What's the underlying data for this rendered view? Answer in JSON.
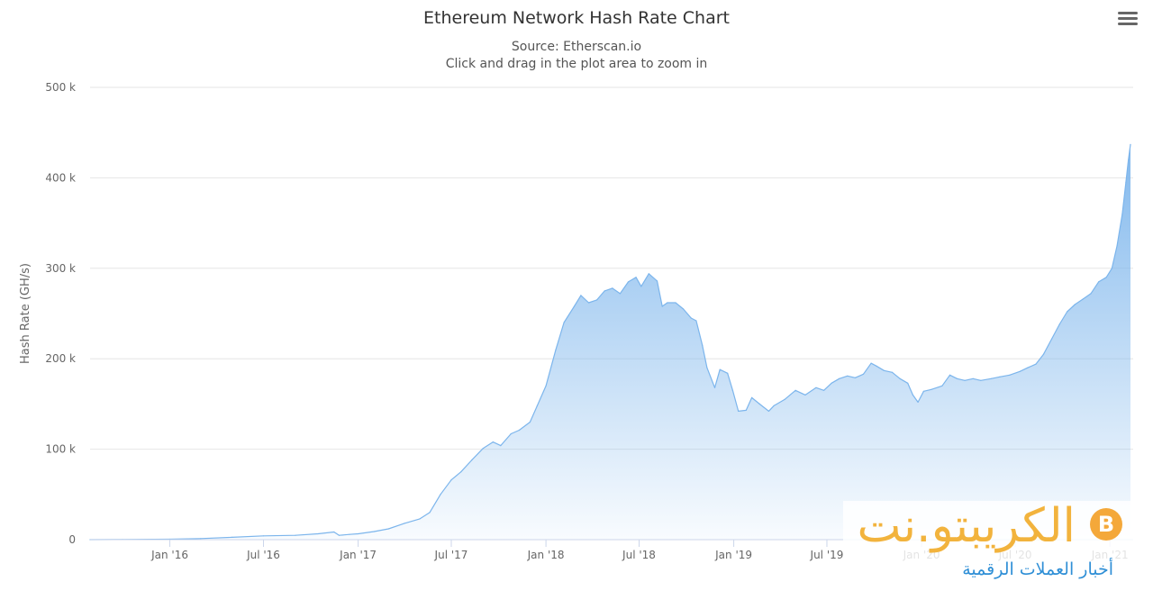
{
  "chart_data": {
    "type": "area",
    "title": "Ethereum Network Hash Rate Chart",
    "subtitle_source": "Source: Etherscan.io",
    "subtitle_hint": "Click and drag in the plot area to zoom in",
    "ylabel": "Hash Rate (GH/s)",
    "ylim": [
      0,
      500000
    ],
    "y_ticks": [
      {
        "value": 0,
        "label": "0"
      },
      {
        "value": 100000,
        "label": "100 k"
      },
      {
        "value": 200000,
        "label": "200 k"
      },
      {
        "value": 300000,
        "label": "300 k"
      },
      {
        "value": 400000,
        "label": "400 k"
      },
      {
        "value": 500000,
        "label": "500 k"
      }
    ],
    "xlim": [
      "2015-07-30",
      "2021-02-10"
    ],
    "x_ticks": [
      {
        "date": "2016-01-01",
        "label": "Jan '16"
      },
      {
        "date": "2016-07-01",
        "label": "Jul '16"
      },
      {
        "date": "2017-01-01",
        "label": "Jan '17"
      },
      {
        "date": "2017-07-01",
        "label": "Jul '17"
      },
      {
        "date": "2018-01-01",
        "label": "Jan '18"
      },
      {
        "date": "2018-07-01",
        "label": "Jul '18"
      },
      {
        "date": "2019-01-01",
        "label": "Jan '19"
      },
      {
        "date": "2019-07-01",
        "label": "Jul '19"
      },
      {
        "date": "2020-01-01",
        "label": "Jan '20"
      },
      {
        "date": "2020-07-01",
        "label": "Jul '20"
      },
      {
        "date": "2021-01-01",
        "label": "Jan '21"
      }
    ],
    "grid": true,
    "legend": "none",
    "series": [
      {
        "color": "#7cb5ec",
        "points": [
          [
            "2015-07-30",
            0
          ],
          [
            "2015-10-01",
            200
          ],
          [
            "2016-01-01",
            500
          ],
          [
            "2016-03-01",
            1200
          ],
          [
            "2016-05-01",
            2600
          ],
          [
            "2016-07-01",
            4200
          ],
          [
            "2016-09-01",
            4800
          ],
          [
            "2016-10-15",
            6500
          ],
          [
            "2016-11-15",
            8500
          ],
          [
            "2016-11-25",
            4800
          ],
          [
            "2016-12-15",
            5800
          ],
          [
            "2017-01-01",
            6500
          ],
          [
            "2017-02-01",
            9000
          ],
          [
            "2017-03-01",
            12000
          ],
          [
            "2017-04-01",
            18000
          ],
          [
            "2017-05-01",
            23000
          ],
          [
            "2017-05-20",
            30000
          ],
          [
            "2017-06-10",
            50000
          ],
          [
            "2017-07-01",
            66000
          ],
          [
            "2017-07-20",
            75000
          ],
          [
            "2017-08-10",
            88000
          ],
          [
            "2017-09-01",
            101000
          ],
          [
            "2017-09-20",
            108000
          ],
          [
            "2017-10-05",
            104000
          ],
          [
            "2017-10-25",
            117000
          ],
          [
            "2017-11-10",
            121000
          ],
          [
            "2017-12-01",
            130000
          ],
          [
            "2017-12-15",
            148000
          ],
          [
            "2018-01-01",
            170000
          ],
          [
            "2018-01-20",
            210000
          ],
          [
            "2018-02-05",
            240000
          ],
          [
            "2018-02-25",
            258000
          ],
          [
            "2018-03-10",
            270000
          ],
          [
            "2018-03-25",
            262000
          ],
          [
            "2018-04-10",
            265000
          ],
          [
            "2018-04-25",
            275000
          ],
          [
            "2018-05-10",
            278000
          ],
          [
            "2018-05-25",
            272000
          ],
          [
            "2018-06-10",
            285000
          ],
          [
            "2018-06-25",
            290000
          ],
          [
            "2018-07-05",
            280000
          ],
          [
            "2018-07-20",
            294000
          ],
          [
            "2018-08-05",
            286000
          ],
          [
            "2018-08-15",
            258000
          ],
          [
            "2018-08-25",
            262000
          ],
          [
            "2018-09-10",
            262000
          ],
          [
            "2018-09-25",
            255000
          ],
          [
            "2018-10-10",
            245000
          ],
          [
            "2018-10-20",
            242000
          ],
          [
            "2018-11-01",
            215000
          ],
          [
            "2018-11-10",
            190000
          ],
          [
            "2018-11-25",
            168000
          ],
          [
            "2018-12-05",
            188000
          ],
          [
            "2018-12-20",
            184000
          ],
          [
            "2018-12-30",
            165000
          ],
          [
            "2019-01-10",
            142000
          ],
          [
            "2019-01-25",
            143000
          ],
          [
            "2019-02-05",
            157000
          ],
          [
            "2019-02-20",
            150000
          ],
          [
            "2019-03-10",
            142000
          ],
          [
            "2019-03-20",
            148000
          ],
          [
            "2019-04-10",
            155000
          ],
          [
            "2019-05-01",
            165000
          ],
          [
            "2019-05-20",
            160000
          ],
          [
            "2019-06-10",
            168000
          ],
          [
            "2019-06-25",
            165000
          ],
          [
            "2019-07-10",
            173000
          ],
          [
            "2019-07-25",
            178000
          ],
          [
            "2019-08-10",
            181000
          ],
          [
            "2019-08-25",
            179000
          ],
          [
            "2019-09-10",
            183000
          ],
          [
            "2019-09-25",
            195000
          ],
          [
            "2019-10-05",
            192000
          ],
          [
            "2019-10-20",
            187000
          ],
          [
            "2019-11-05",
            185000
          ],
          [
            "2019-11-20",
            178000
          ],
          [
            "2019-12-05",
            173000
          ],
          [
            "2019-12-15",
            160000
          ],
          [
            "2019-12-25",
            152000
          ],
          [
            "2020-01-05",
            164000
          ],
          [
            "2020-01-20",
            166000
          ],
          [
            "2020-02-10",
            170000
          ],
          [
            "2020-02-25",
            182000
          ],
          [
            "2020-03-10",
            178000
          ],
          [
            "2020-03-25",
            176000
          ],
          [
            "2020-04-10",
            178000
          ],
          [
            "2020-04-25",
            176000
          ],
          [
            "2020-05-15",
            178000
          ],
          [
            "2020-06-01",
            180000
          ],
          [
            "2020-06-20",
            182000
          ],
          [
            "2020-07-10",
            186000
          ],
          [
            "2020-07-25",
            190000
          ],
          [
            "2020-08-10",
            194000
          ],
          [
            "2020-08-25",
            205000
          ],
          [
            "2020-09-10",
            222000
          ],
          [
            "2020-09-25",
            238000
          ],
          [
            "2020-10-10",
            252000
          ],
          [
            "2020-10-25",
            260000
          ],
          [
            "2020-11-10",
            266000
          ],
          [
            "2020-11-25",
            272000
          ],
          [
            "2020-12-10",
            285000
          ],
          [
            "2020-12-25",
            290000
          ],
          [
            "2021-01-05",
            300000
          ],
          [
            "2021-01-15",
            325000
          ],
          [
            "2021-01-25",
            360000
          ],
          [
            "2021-02-01",
            395000
          ],
          [
            "2021-02-06",
            420000
          ],
          [
            "2021-02-10",
            437000
          ]
        ]
      }
    ]
  },
  "toolbar": {
    "menu_icon": "hamburger-menu-icon"
  },
  "watermark": {
    "brand": "الكريبتو.نت",
    "tagline": "أخبار العملات الرقمية",
    "logo_glyph": "B"
  }
}
